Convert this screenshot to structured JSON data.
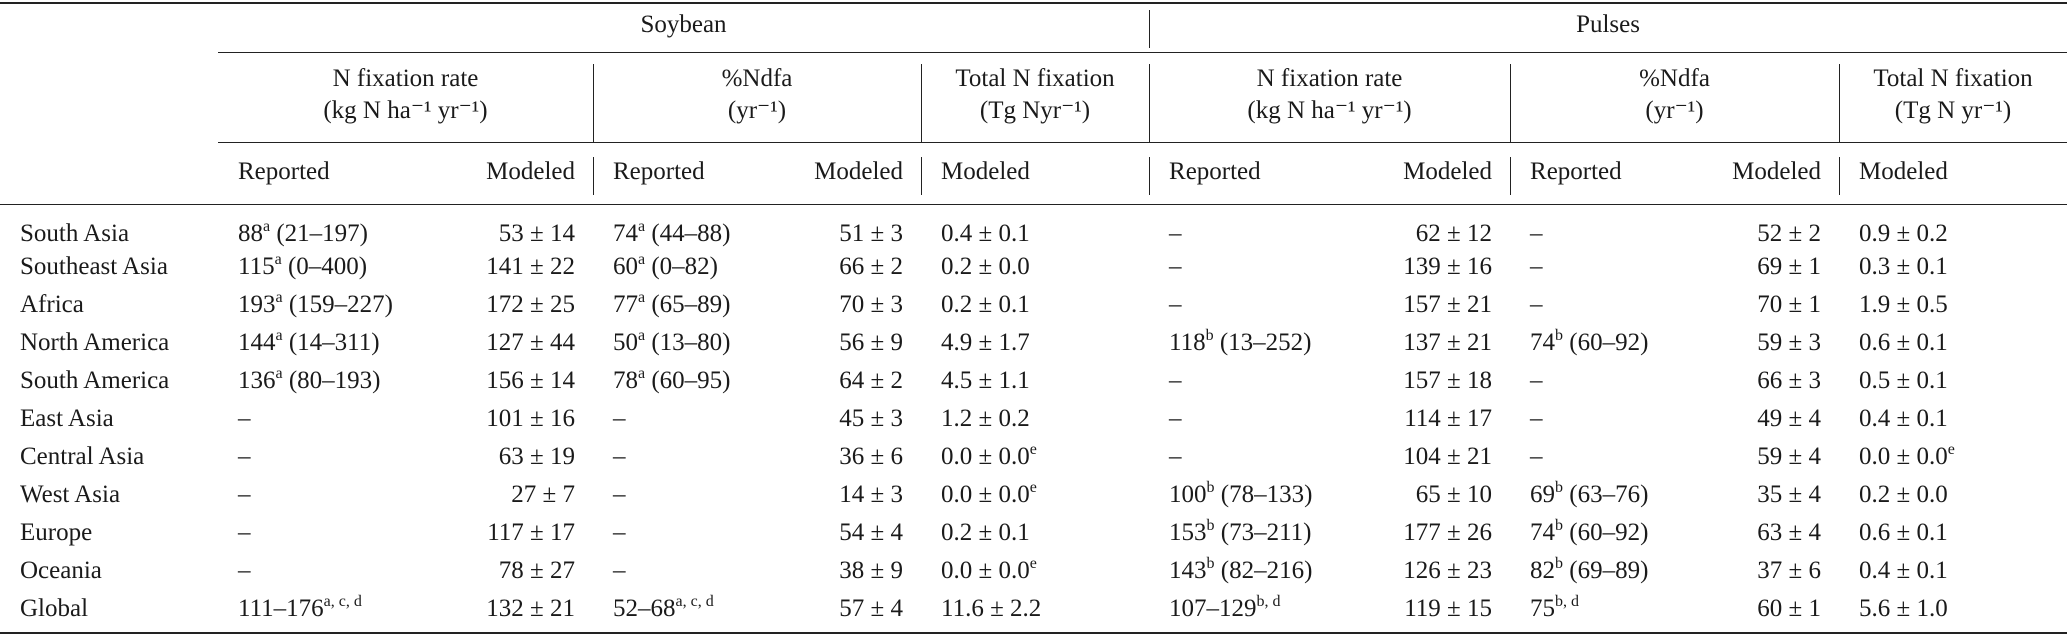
{
  "header": {
    "groups": [
      {
        "label": "Soybean"
      },
      {
        "label": "Pulses"
      }
    ],
    "metrics": [
      {
        "line1": "N fixation rate",
        "line2": "(kg N ha⁻¹ yr⁻¹)"
      },
      {
        "line1": "%Ndfa",
        "line2": "(yr⁻¹)"
      },
      {
        "line1": "Total N fixation",
        "line2": "(Tg Nyr⁻¹)"
      },
      {
        "line1": "N fixation rate",
        "line2": "(kg N ha⁻¹ yr⁻¹)"
      },
      {
        "line1": "%Ndfa",
        "line2": "(yr⁻¹)"
      },
      {
        "line1": "Total N fixation",
        "line2": "(Tg N yr⁻¹)"
      }
    ],
    "subcols": [
      "Reported",
      "Modeled",
      "Reported",
      "Modeled",
      "Modeled",
      "Reported",
      "Modeled",
      "Reported",
      "Modeled",
      "Modeled"
    ]
  },
  "rows": [
    {
      "region": "South Asia",
      "cells": [
        {
          "v": "88",
          "s": "a",
          "t": " (21–197)"
        },
        {
          "v": "53 ± 14"
        },
        {
          "v": "74",
          "s": "a",
          "t": " (44–88)"
        },
        {
          "v": "51 ± 3"
        },
        {
          "v": "0.4 ± 0.1"
        },
        {
          "v": "–"
        },
        {
          "v": "62 ± 12"
        },
        {
          "v": "–"
        },
        {
          "v": "52 ± 2"
        },
        {
          "v": "0.9 ± 0.2"
        }
      ]
    },
    {
      "region": "Southeast Asia",
      "cells": [
        {
          "v": "115",
          "s": "a",
          "t": " (0–400)"
        },
        {
          "v": "141 ± 22"
        },
        {
          "v": "60",
          "s": "a",
          "t": " (0–82)"
        },
        {
          "v": "66 ± 2"
        },
        {
          "v": "0.2 ± 0.0"
        },
        {
          "v": "–"
        },
        {
          "v": "139 ± 16"
        },
        {
          "v": "–"
        },
        {
          "v": "69 ± 1"
        },
        {
          "v": "0.3 ± 0.1"
        }
      ]
    },
    {
      "region": "Africa",
      "cells": [
        {
          "v": "193",
          "s": "a",
          "t": " (159–227)"
        },
        {
          "v": "172 ± 25"
        },
        {
          "v": "77",
          "s": "a",
          "t": " (65–89)"
        },
        {
          "v": "70 ± 3"
        },
        {
          "v": "0.2 ± 0.1"
        },
        {
          "v": "–"
        },
        {
          "v": "157 ± 21"
        },
        {
          "v": "–"
        },
        {
          "v": "70 ± 1"
        },
        {
          "v": "1.9 ± 0.5"
        }
      ]
    },
    {
      "region": "North America",
      "cells": [
        {
          "v": "144",
          "s": "a",
          "t": " (14–311)"
        },
        {
          "v": "127 ± 44"
        },
        {
          "v": "50",
          "s": "a",
          "t": " (13–80)"
        },
        {
          "v": "56 ± 9"
        },
        {
          "v": "4.9 ± 1.7"
        },
        {
          "v": "118",
          "s": "b",
          "t": " (13–252)"
        },
        {
          "v": "137 ± 21"
        },
        {
          "v": "74",
          "s": "b",
          "t": " (60–92)"
        },
        {
          "v": "59 ± 3"
        },
        {
          "v": "0.6 ± 0.1"
        }
      ]
    },
    {
      "region": "South America",
      "cells": [
        {
          "v": "136",
          "s": "a",
          "t": " (80–193)"
        },
        {
          "v": "156 ± 14"
        },
        {
          "v": "78",
          "s": "a",
          "t": " (60–95)"
        },
        {
          "v": "64 ± 2"
        },
        {
          "v": "4.5 ± 1.1"
        },
        {
          "v": "–"
        },
        {
          "v": "157 ± 18"
        },
        {
          "v": "–"
        },
        {
          "v": "66 ± 3"
        },
        {
          "v": "0.5 ± 0.1"
        }
      ]
    },
    {
      "region": "East Asia",
      "cells": [
        {
          "v": "–"
        },
        {
          "v": "101 ± 16"
        },
        {
          "v": "–"
        },
        {
          "v": "45 ± 3"
        },
        {
          "v": "1.2 ± 0.2"
        },
        {
          "v": "–"
        },
        {
          "v": "114 ± 17"
        },
        {
          "v": "–"
        },
        {
          "v": "49 ± 4"
        },
        {
          "v": "0.4 ± 0.1"
        }
      ]
    },
    {
      "region": "Central Asia",
      "cells": [
        {
          "v": "–"
        },
        {
          "v": "63 ± 19"
        },
        {
          "v": "–"
        },
        {
          "v": "36 ± 6"
        },
        {
          "v": "0.0 ± 0.0",
          "s": "e"
        },
        {
          "v": "–"
        },
        {
          "v": "104 ± 21"
        },
        {
          "v": "–"
        },
        {
          "v": "59 ± 4"
        },
        {
          "v": "0.0 ± 0.0",
          "s": "e"
        }
      ]
    },
    {
      "region": "West Asia",
      "cells": [
        {
          "v": "–"
        },
        {
          "v": "27 ± 7"
        },
        {
          "v": "–"
        },
        {
          "v": "14 ± 3"
        },
        {
          "v": "0.0 ± 0.0",
          "s": "e"
        },
        {
          "v": "100",
          "s": "b",
          "t": " (78–133)"
        },
        {
          "v": "65 ± 10"
        },
        {
          "v": "69",
          "s": "b",
          "t": " (63–76)"
        },
        {
          "v": "35 ± 4"
        },
        {
          "v": "0.2 ± 0.0"
        }
      ]
    },
    {
      "region": "Europe",
      "cells": [
        {
          "v": "–"
        },
        {
          "v": "117 ± 17"
        },
        {
          "v": "–"
        },
        {
          "v": "54 ± 4"
        },
        {
          "v": "0.2 ± 0.1"
        },
        {
          "v": "153",
          "s": "b",
          "t": " (73–211)"
        },
        {
          "v": "177 ± 26"
        },
        {
          "v": "74",
          "s": "b",
          "t": " (60–92)"
        },
        {
          "v": "63 ± 4"
        },
        {
          "v": "0.6 ± 0.1"
        }
      ]
    },
    {
      "region": "Oceania",
      "cells": [
        {
          "v": "–"
        },
        {
          "v": "78 ± 27"
        },
        {
          "v": "–"
        },
        {
          "v": "38 ± 9"
        },
        {
          "v": "0.0 ± 0.0",
          "s": "e"
        },
        {
          "v": "143",
          "s": "b",
          "t": " (82–216)"
        },
        {
          "v": "126 ± 23"
        },
        {
          "v": "82",
          "s": "b",
          "t": " (69–89)"
        },
        {
          "v": "37 ± 6"
        },
        {
          "v": "0.4 ± 0.1"
        }
      ]
    },
    {
      "region": "Global",
      "cells": [
        {
          "v": "111–176",
          "s": "a, c, d"
        },
        {
          "v": "132 ± 21"
        },
        {
          "v": "52–68",
          "s": "a, c, d"
        },
        {
          "v": "57 ± 4"
        },
        {
          "v": "11.6 ± 2.2"
        },
        {
          "v": "107–129",
          "s": "b, d"
        },
        {
          "v": "119 ± 15"
        },
        {
          "v": "75",
          "s": "b, d"
        },
        {
          "v": "60 ± 1"
        },
        {
          "v": "5.6 ± 1.0"
        }
      ]
    }
  ]
}
